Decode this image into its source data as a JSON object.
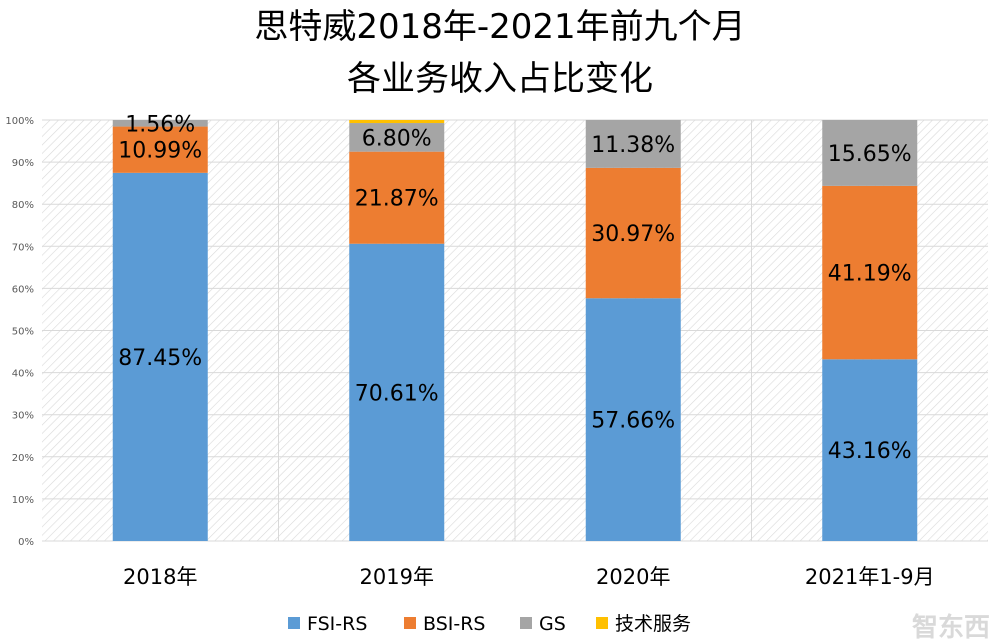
{
  "chart_data": {
    "type": "bar",
    "stacked": true,
    "percent_stacked": true,
    "title": [
      "思特威2018年-2021年前九个月",
      "各业务收入占比变化"
    ],
    "categories": [
      "2018年",
      "2019年",
      "2020年",
      "2021年1-9月"
    ],
    "series": [
      {
        "name": "FSI-RS",
        "color": "#5B9BD5",
        "values": [
          87.45,
          70.61,
          57.66,
          43.16
        ],
        "labels": [
          "87.45%",
          "70.61%",
          "57.66%",
          "43.16%"
        ]
      },
      {
        "name": "BSI-RS",
        "color": "#ED7D31",
        "values": [
          10.99,
          21.87,
          30.97,
          41.19
        ],
        "labels": [
          "10.99%",
          "21.87%",
          "30.97%",
          "41.19%"
        ]
      },
      {
        "name": "GS",
        "color": "#A5A5A5",
        "values": [
          1.56,
          6.8,
          11.38,
          15.65
        ],
        "labels": [
          "1.56%",
          "6.80%",
          "11.38%",
          "15.65%"
        ]
      },
      {
        "name": "技术服务",
        "color": "#FFC000",
        "values": [
          0,
          0.72,
          0,
          0
        ],
        "labels": [
          "",
          "",
          "",
          ""
        ]
      }
    ],
    "ylim": [
      0,
      100
    ],
    "yticks": [
      "0%",
      "10%",
      "20%",
      "30%",
      "40%",
      "50%",
      "60%",
      "70%",
      "80%",
      "90%",
      "100%"
    ],
    "grid": true,
    "legend_position": "bottom",
    "watermark": "智东西"
  }
}
